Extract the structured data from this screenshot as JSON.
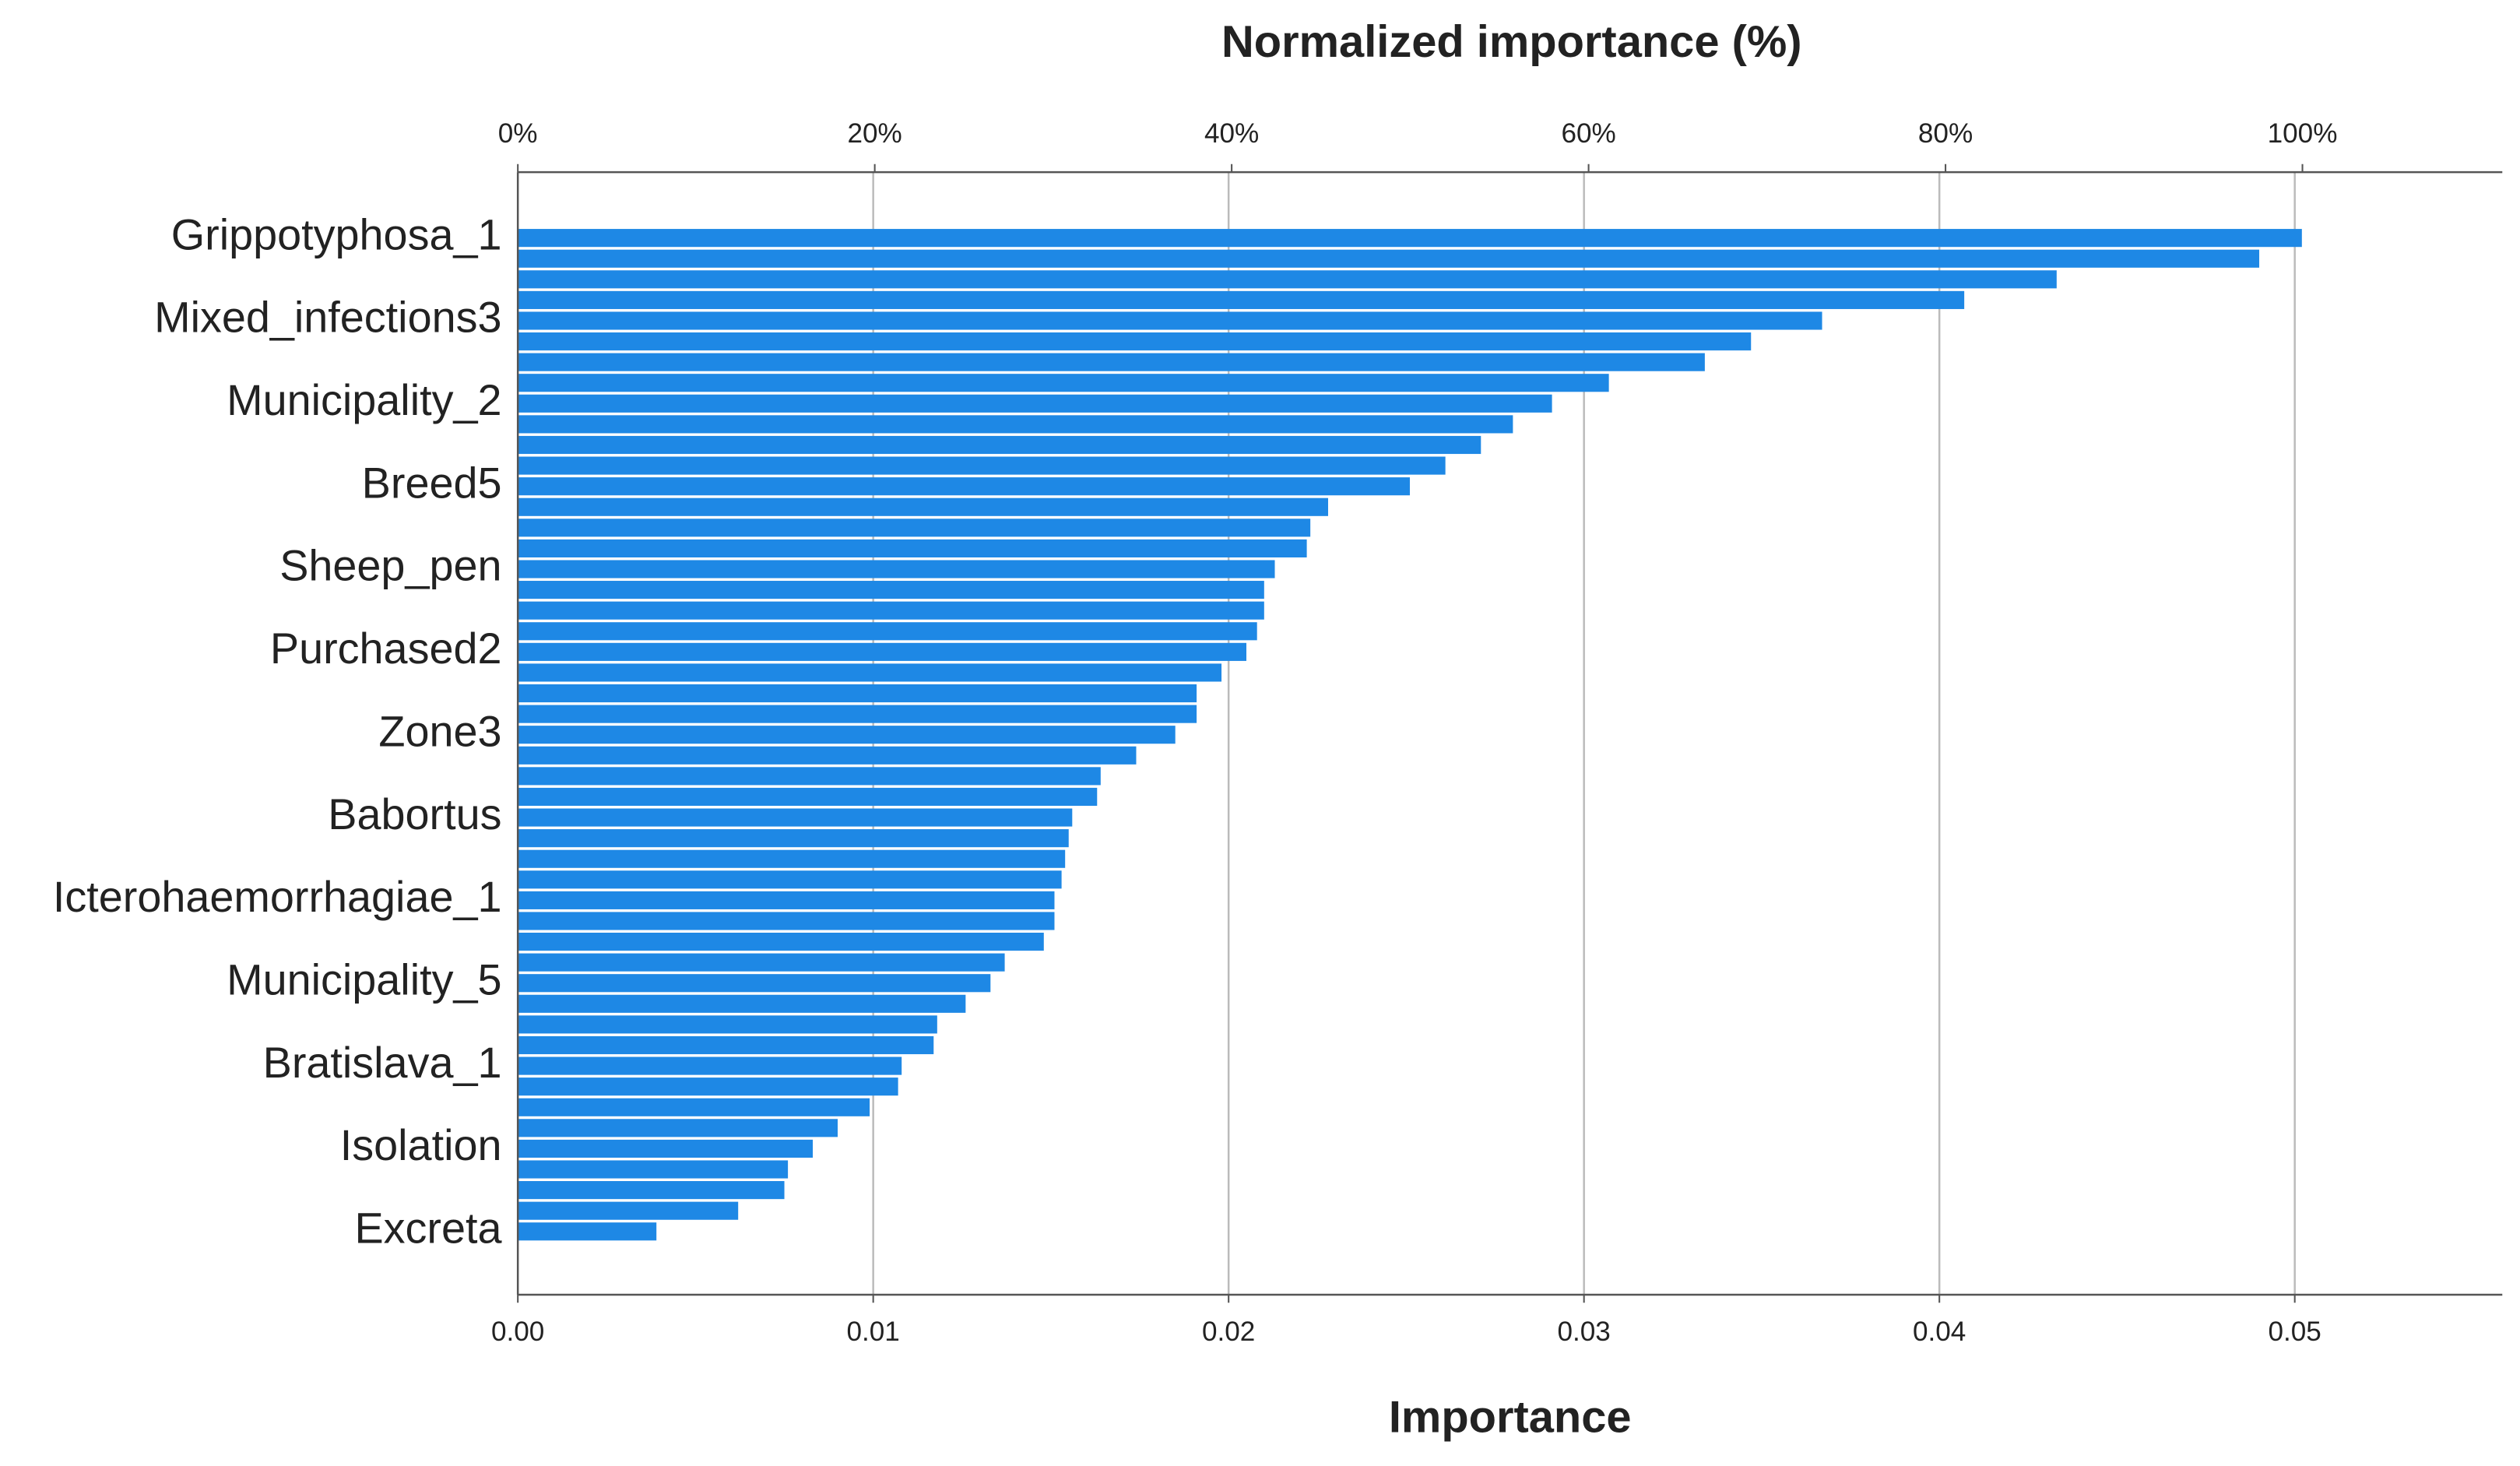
{
  "chart_data": {
    "type": "bar",
    "orientation": "horizontal",
    "title": "Normalized importance (%)",
    "xlabel": "Importance",
    "color": "#1e88e5",
    "grid": true,
    "categories": [
      "Grippotyphosa_1",
      null,
      null,
      null,
      "Mixed_infections3",
      null,
      null,
      null,
      "Municipality_2",
      null,
      null,
      null,
      "Breed5",
      null,
      null,
      null,
      "Sheep_pen",
      null,
      null,
      null,
      "Purchased2",
      null,
      null,
      null,
      "Zone3",
      null,
      null,
      null,
      "Babortus",
      null,
      null,
      null,
      "Icterohaemorrhagiae_1",
      null,
      null,
      null,
      "Municipality_5",
      null,
      null,
      null,
      "Bratislava_1",
      null,
      null,
      null,
      "Isolation",
      null,
      null,
      null,
      "Excreta"
    ],
    "values": [
      0.0502,
      0.049,
      0.0433,
      0.0407,
      0.0367,
      0.0347,
      0.0334,
      0.0307,
      0.0291,
      0.028,
      0.0271,
      0.0261,
      0.0251,
      0.0228,
      0.0223,
      0.0222,
      0.0213,
      0.021,
      0.021,
      0.0208,
      0.0205,
      0.0198,
      0.0191,
      0.0191,
      0.0185,
      0.0174,
      0.0164,
      0.0163,
      0.0156,
      0.0155,
      0.0154,
      0.0153,
      0.0151,
      0.0151,
      0.0148,
      0.0137,
      0.0133,
      0.0126,
      0.0118,
      0.0117,
      0.0108,
      0.0107,
      0.0099,
      0.009,
      0.0083,
      0.0076,
      0.0075,
      0.0062,
      0.0039
    ],
    "xlim": [
      0,
      0.05584
    ],
    "xticks": [
      {
        "value": 0,
        "label": "0.00"
      },
      {
        "value": 0.01,
        "label": "0.01"
      },
      {
        "value": 0.02,
        "label": "0.02"
      },
      {
        "value": 0.03,
        "label": "0.03"
      },
      {
        "value": 0.04,
        "label": "0.04"
      },
      {
        "value": 0.05,
        "label": "0.05"
      }
    ],
    "x2lim": [
      0,
      111.2
    ],
    "x2ticks": [
      {
        "value": 0,
        "label": "0%"
      },
      {
        "value": 20,
        "label": "20%"
      },
      {
        "value": 40,
        "label": "40%"
      },
      {
        "value": 60,
        "label": "60%"
      },
      {
        "value": 80,
        "label": "80%"
      },
      {
        "value": 100,
        "label": "100%"
      }
    ]
  }
}
